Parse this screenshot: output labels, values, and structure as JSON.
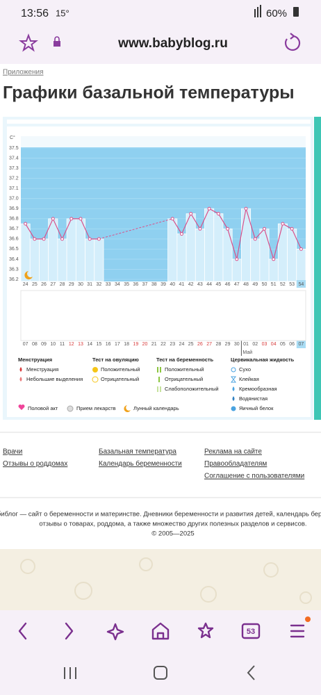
{
  "status_bar": {
    "time": "13:56",
    "temperature": "15°",
    "battery": "60%"
  },
  "browser": {
    "url": "www.babyblog.ru",
    "tabs_count": "53"
  },
  "breadcrumb": "Приложения",
  "title": "Графики базальной температуры",
  "chart_data": {
    "type": "line",
    "y_label": "C°",
    "categories": [
      "24",
      "25",
      "26",
      "27",
      "28",
      "29",
      "30",
      "31",
      "32",
      "33",
      "34",
      "35",
      "36",
      "37",
      "38",
      "39",
      "40",
      "41",
      "42",
      "43",
      "44",
      "45",
      "46",
      "47",
      "48",
      "49",
      "50",
      "51",
      "52",
      "53",
      "54"
    ],
    "dates": [
      "07",
      "08",
      "09",
      "10",
      "11",
      "12",
      "13",
      "14",
      "15",
      "16",
      "17",
      "18",
      "19",
      "20",
      "21",
      "22",
      "23",
      "24",
      "25",
      "26",
      "27",
      "28",
      "29",
      "30",
      "01",
      "02",
      "03",
      "04",
      "05",
      "06",
      "07"
    ],
    "month_label": "Май",
    "values": [
      36.75,
      36.6,
      36.6,
      36.8,
      36.6,
      36.8,
      36.8,
      36.6,
      36.6,
      null,
      null,
      null,
      null,
      null,
      null,
      null,
      36.8,
      36.65,
      36.85,
      36.7,
      36.9,
      36.85,
      36.7,
      36.4,
      36.9,
      36.6,
      36.7,
      36.4,
      36.75,
      36.7,
      36.5
    ],
    "color": "#d9508a",
    "ylim": [
      36.2,
      37.5
    ],
    "yticks": [
      36.2,
      36.3,
      36.4,
      36.5,
      36.6,
      36.7,
      36.8,
      36.9,
      {
        "value": 37,
        "label": "37.0"
      },
      37.1,
      37.2,
      37.3,
      37.4,
      37.5
    ]
  },
  "legend": {
    "groups": [
      {
        "title": "Менструация",
        "items": [
          "Менструация",
          "Небольшие выделения"
        ]
      },
      {
        "title": "Тест на овуляцию",
        "items": [
          "Положительный",
          "Отрицательный"
        ]
      },
      {
        "title": "Тест на беременность",
        "items": [
          "Положительный",
          "Отрицательный",
          "Слабоположительный"
        ]
      },
      {
        "title": "Цервикальная жидкость",
        "items": [
          "Сухо",
          "Клейкая",
          "Кремообразная",
          "Водянистая",
          "Яичный белок"
        ]
      }
    ],
    "extra": [
      "Половой акт",
      "Прием лекарств",
      "Лунный календарь"
    ]
  },
  "footer": {
    "columns": [
      [
        "Врачи",
        "Отзывы о роддомах"
      ],
      [
        "Базальная температура",
        "Календарь беременности"
      ],
      [
        "Реклама на сайте",
        "Правообладателям",
        "Соглашение с пользователями"
      ]
    ],
    "about": [
      "Бэбиблог — сайт о беременности и материнстве. Дневники беременности и развития детей, календарь беременности,",
      "отзывы о товарах, роддома, а также множество других полезных разделов и сервисов.",
      "© 2005—2025"
    ]
  }
}
